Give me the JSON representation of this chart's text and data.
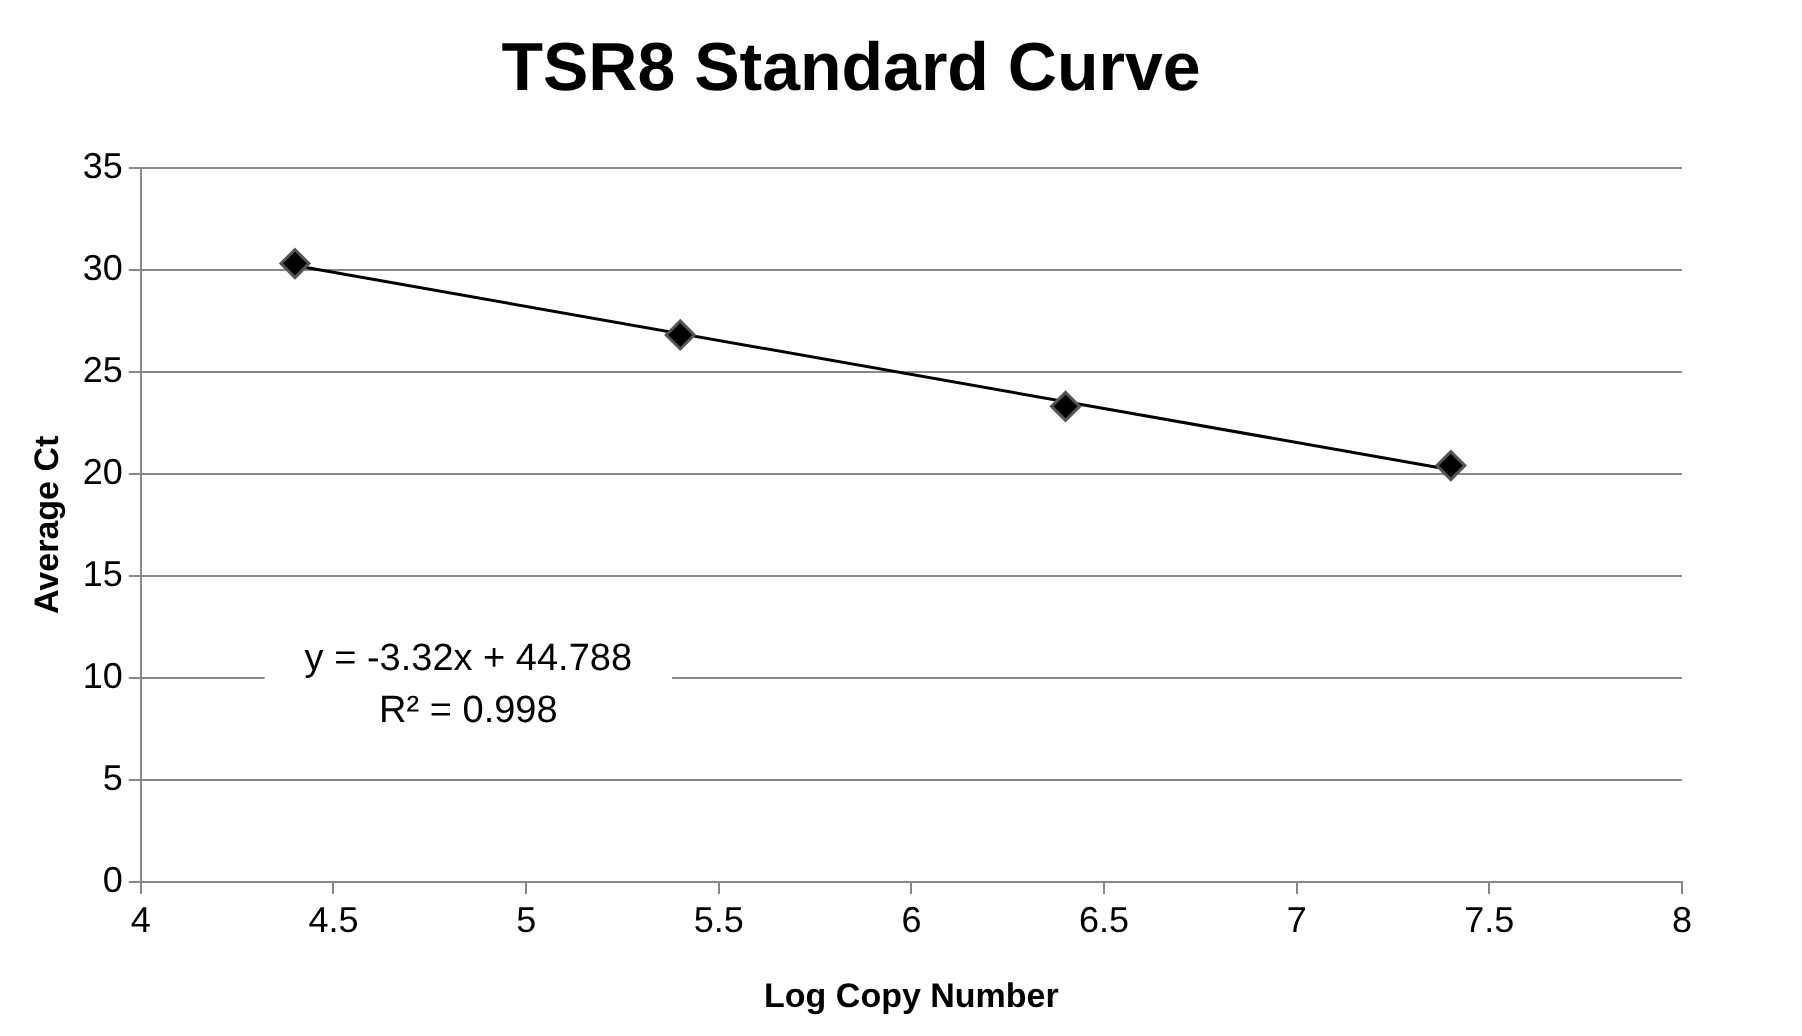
{
  "chart_data": {
    "type": "scatter",
    "title": "TSR8 Standard Curve",
    "xlabel": "Log Copy Number",
    "ylabel": "Average Ct",
    "x": [
      4.4,
      5.4,
      6.4,
      7.4
    ],
    "series": [
      {
        "type": "scatter",
        "color": "#000000",
        "marker": "diamond",
        "values": [
          30.3,
          26.8,
          23.3,
          20.4
        ]
      },
      {
        "type": "line",
        "color": "#000000",
        "marker": "none",
        "x": [
          4.4,
          7.4
        ],
        "values": [
          30.2,
          20.2
        ]
      }
    ],
    "xlim": [
      4,
      8
    ],
    "xticks": [
      4,
      4.5,
      5,
      5.5,
      6,
      6.5,
      7,
      7.5,
      8
    ],
    "ylim": [
      0,
      35
    ],
    "yticks": [
      0,
      5,
      10,
      15,
      20,
      25,
      30,
      35
    ],
    "grid": "y",
    "legend": false,
    "annotations": [
      "y = -3.32x + 44.788",
      "R² = 0.998"
    ]
  }
}
